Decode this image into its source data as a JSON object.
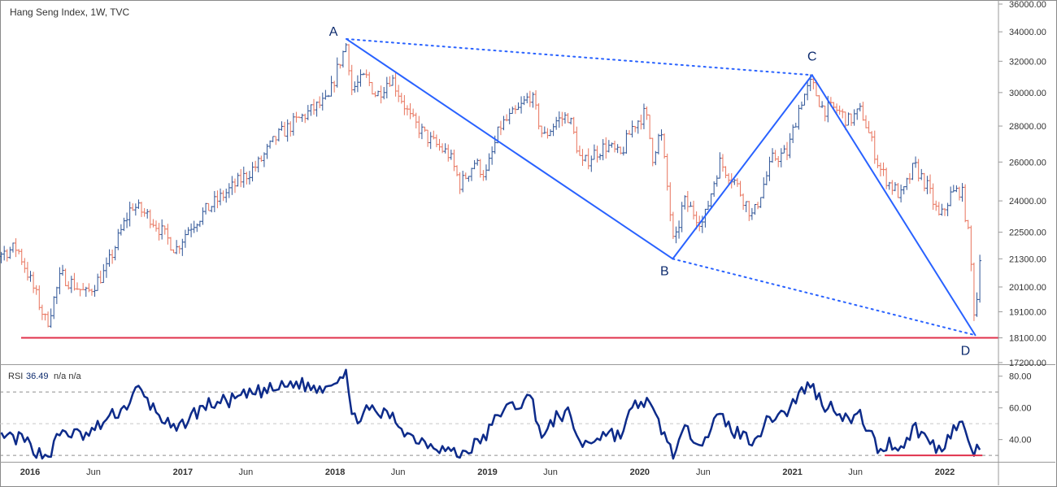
{
  "chart_data": [
    {
      "type": "candlestick",
      "title": "Hang Seng Index, 1W, TVC",
      "y_ticks": [
        "36000.00",
        "34000.00",
        "32000.00",
        "30000.00",
        "28000.00",
        "26000.00",
        "24000.00",
        "22500.00",
        "21300.00",
        "20100.00",
        "19100.00",
        "18100.00",
        "17200.00"
      ],
      "y_scale": "log",
      "ylim": [
        17200,
        36000
      ],
      "x_ticks": [
        {
          "label": "2016",
          "date": "2016-01-01"
        },
        {
          "label": "Jun",
          "date": "2016-06-01"
        },
        {
          "label": "2017",
          "date": "2017-01-01"
        },
        {
          "label": "Jun",
          "date": "2017-06-01"
        },
        {
          "label": "2018",
          "date": "2018-01-01"
        },
        {
          "label": "Jun",
          "date": "2018-06-01"
        },
        {
          "label": "2019",
          "date": "2019-01-01"
        },
        {
          "label": "Jun",
          "date": "2019-06-01"
        },
        {
          "label": "2020",
          "date": "2020-01-01"
        },
        {
          "label": "Jun",
          "date": "2020-06-01"
        },
        {
          "label": "2021",
          "date": "2021-01-01"
        },
        {
          "label": "Jun",
          "date": "2021-06-01"
        },
        {
          "label": "2022",
          "date": "2022-01-01"
        }
      ],
      "price_path": [
        [
          "2015-08-01",
          23000
        ],
        [
          "2015-10-15",
          21500
        ],
        [
          "2015-12-01",
          21800
        ],
        [
          "2016-01-10",
          20000
        ],
        [
          "2016-02-10",
          18600
        ],
        [
          "2016-03-15",
          20600
        ],
        [
          "2016-05-15",
          19800
        ],
        [
          "2016-07-01",
          20800
        ],
        [
          "2016-08-01",
          22300
        ],
        [
          "2016-09-01",
          23800
        ],
        [
          "2016-10-15",
          23200
        ],
        [
          "2016-12-15",
          21700
        ],
        [
          "2017-01-15",
          22700
        ],
        [
          "2017-03-01",
          23600
        ],
        [
          "2017-05-01",
          24700
        ],
        [
          "2017-07-01",
          25900
        ],
        [
          "2017-08-15",
          27400
        ],
        [
          "2017-10-01",
          28300
        ],
        [
          "2017-11-15",
          29100
        ],
        [
          "2017-12-15",
          29500
        ],
        [
          "2018-01-10",
          31800
        ],
        [
          "2018-01-28",
          33200
        ],
        [
          "2018-02-10",
          30200
        ],
        [
          "2018-03-15",
          31000
        ],
        [
          "2018-04-10",
          29800
        ],
        [
          "2018-05-15",
          31000
        ],
        [
          "2018-07-01",
          28400
        ],
        [
          "2018-08-15",
          27200
        ],
        [
          "2018-10-01",
          26400
        ],
        [
          "2018-10-28",
          24800
        ],
        [
          "2018-12-01",
          26000
        ],
        [
          "2018-12-28",
          25300
        ],
        [
          "2019-02-01",
          28000
        ],
        [
          "2019-03-15",
          28900
        ],
        [
          "2019-04-15",
          29900
        ],
        [
          "2019-05-15",
          27300
        ],
        [
          "2019-06-15",
          28300
        ],
        [
          "2019-07-15",
          28600
        ],
        [
          "2019-08-15",
          25800
        ],
        [
          "2019-09-15",
          26500
        ],
        [
          "2019-10-15",
          26900
        ],
        [
          "2019-11-15",
          26300
        ],
        [
          "2019-12-15",
          28000
        ],
        [
          "2020-01-15",
          28800
        ],
        [
          "2020-02-01",
          26300
        ],
        [
          "2020-02-20",
          27700
        ],
        [
          "2020-03-23",
          21700
        ],
        [
          "2020-04-15",
          24000
        ],
        [
          "2020-06-01",
          22900
        ],
        [
          "2020-07-10",
          26000
        ],
        [
          "2020-08-15",
          25000
        ],
        [
          "2020-09-28",
          23200
        ],
        [
          "2020-11-15",
          26200
        ],
        [
          "2020-12-20",
          26500
        ],
        [
          "2021-01-20",
          29400
        ],
        [
          "2021-02-15",
          30600
        ],
        [
          "2021-03-15",
          29000
        ],
        [
          "2021-04-15",
          29000
        ],
        [
          "2021-05-15",
          28300
        ],
        [
          "2021-06-15",
          28900
        ],
        [
          "2021-07-28",
          25700
        ],
        [
          "2021-08-20",
          24900
        ],
        [
          "2021-09-20",
          24200
        ],
        [
          "2021-10-20",
          25800
        ],
        [
          "2021-11-20",
          24700
        ],
        [
          "2021-12-20",
          23100
        ],
        [
          "2022-01-15",
          24300
        ],
        [
          "2022-02-10",
          24600
        ],
        [
          "2022-03-01",
          22000
        ],
        [
          "2022-03-15",
          18400
        ],
        [
          "2022-03-25",
          21500
        ],
        [
          "2022-04-01",
          21600
        ]
      ],
      "overlay": {
        "support_line": {
          "value": 18100,
          "color": "#e0314b"
        },
        "pattern_points": [
          {
            "label": "A",
            "date": "2018-01-28",
            "value": 33500
          },
          {
            "label": "B",
            "date": "2020-03-20",
            "value": 21300
          },
          {
            "label": "C",
            "date": "2021-02-17",
            "value": 31100
          },
          {
            "label": "D",
            "date": "2022-03-15",
            "value": 18200
          }
        ],
        "line_color": "#2962ff"
      },
      "up_color": "#2f5597",
      "down_color": "#e8735c"
    },
    {
      "type": "line",
      "indicator": "RSI",
      "legend_label": "RSI",
      "legend_value": "36.49",
      "legend_extra": "n/a  n/a",
      "y_ticks": [
        "80.00",
        "60.00",
        "40.00"
      ],
      "ylim": [
        27,
        86
      ],
      "levels": [
        70,
        50,
        30
      ],
      "line_color": "#0d2b8a",
      "rsi_path": [
        [
          "2015-08-01",
          46
        ],
        [
          "2015-10-15",
          42
        ],
        [
          "2015-12-15",
          40
        ],
        [
          "2016-01-25",
          31
        ],
        [
          "2016-02-15",
          30
        ],
        [
          "2016-03-15",
          45
        ],
        [
          "2016-05-15",
          42
        ],
        [
          "2016-07-15",
          55
        ],
        [
          "2016-08-15",
          60
        ],
        [
          "2016-09-15",
          72
        ],
        [
          "2016-10-15",
          62
        ],
        [
          "2016-12-15",
          44
        ],
        [
          "2017-01-15",
          54
        ],
        [
          "2017-03-01",
          62
        ],
        [
          "2017-05-01",
          65
        ],
        [
          "2017-07-01",
          70
        ],
        [
          "2017-08-15",
          72
        ],
        [
          "2017-10-01",
          76
        ],
        [
          "2017-11-15",
          72
        ],
        [
          "2017-12-15",
          75
        ],
        [
          "2018-01-10",
          80
        ],
        [
          "2018-01-28",
          84
        ],
        [
          "2018-02-10",
          52
        ],
        [
          "2018-03-15",
          58
        ],
        [
          "2018-05-15",
          55
        ],
        [
          "2018-07-01",
          42
        ],
        [
          "2018-08-15",
          38
        ],
        [
          "2018-10-28",
          30
        ],
        [
          "2018-12-28",
          42
        ],
        [
          "2019-02-01",
          58
        ],
        [
          "2019-03-15",
          62
        ],
        [
          "2019-04-15",
          67
        ],
        [
          "2019-05-15",
          40
        ],
        [
          "2019-06-15",
          55
        ],
        [
          "2019-07-15",
          56
        ],
        [
          "2019-08-15",
          36
        ],
        [
          "2019-10-15",
          45
        ],
        [
          "2019-11-15",
          42
        ],
        [
          "2019-12-15",
          60
        ],
        [
          "2020-01-15",
          65
        ],
        [
          "2020-02-20",
          48
        ],
        [
          "2020-03-23",
          30
        ],
        [
          "2020-04-15",
          45
        ],
        [
          "2020-06-01",
          40
        ],
        [
          "2020-07-10",
          55
        ],
        [
          "2020-08-15",
          45
        ],
        [
          "2020-09-28",
          40
        ],
        [
          "2020-11-15",
          55
        ],
        [
          "2020-12-20",
          58
        ],
        [
          "2021-01-20",
          70
        ],
        [
          "2021-02-15",
          75
        ],
        [
          "2021-03-15",
          62
        ],
        [
          "2021-04-15",
          60
        ],
        [
          "2021-05-15",
          52
        ],
        [
          "2021-06-15",
          55
        ],
        [
          "2021-07-28",
          32
        ],
        [
          "2021-08-20",
          38
        ],
        [
          "2021-09-20",
          35
        ],
        [
          "2021-10-20",
          48
        ],
        [
          "2021-11-20",
          40
        ],
        [
          "2021-12-20",
          33
        ],
        [
          "2022-01-15",
          45
        ],
        [
          "2022-02-10",
          50
        ],
        [
          "2022-03-01",
          38
        ],
        [
          "2022-03-15",
          30
        ],
        [
          "2022-03-25",
          36
        ],
        [
          "2022-04-01",
          36
        ]
      ],
      "overlay": {
        "support_segment": {
          "start_date": "2021-08-10",
          "end_date": "2022-04-01",
          "value": 30,
          "color": "#e0314b"
        }
      }
    }
  ]
}
